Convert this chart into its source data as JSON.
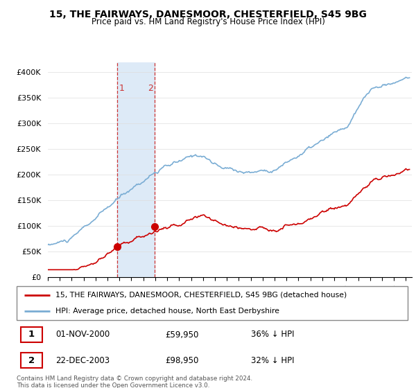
{
  "title": "15, THE FAIRWAYS, DANESMOOR, CHESTERFIELD, S45 9BG",
  "subtitle": "Price paid vs. HM Land Registry's House Price Index (HPI)",
  "legend_line1": "15, THE FAIRWAYS, DANESMOOR, CHESTERFIELD, S45 9BG (detached house)",
  "legend_line2": "HPI: Average price, detached house, North East Derbyshire",
  "sale1_date": "01-NOV-2000",
  "sale1_price": "£59,950",
  "sale1_hpi": "36% ↓ HPI",
  "sale1_year": 2000.83,
  "sale1_value": 59950,
  "sale2_date": "22-DEC-2003",
  "sale2_price": "£98,950",
  "sale2_hpi": "32% ↓ HPI",
  "sale2_year": 2003.97,
  "sale2_value": 98950,
  "price_color": "#cc0000",
  "hpi_color": "#7aadd4",
  "vline_color": "#cc3333",
  "shade_color": "#ddeaf7",
  "yticks": [
    0,
    50000,
    100000,
    150000,
    200000,
    250000,
    300000,
    350000,
    400000
  ],
  "ytick_labels": [
    "£0",
    "£50K",
    "£100K",
    "£150K",
    "£200K",
    "£250K",
    "£300K",
    "£350K",
    "£400K"
  ],
  "xmin": 1995,
  "xmax": 2025.5,
  "ymin": 0,
  "ymax": 420000,
  "footer": "Contains HM Land Registry data © Crown copyright and database right 2024.\nThis data is licensed under the Open Government Licence v3.0.",
  "grid_color": "#dddddd"
}
